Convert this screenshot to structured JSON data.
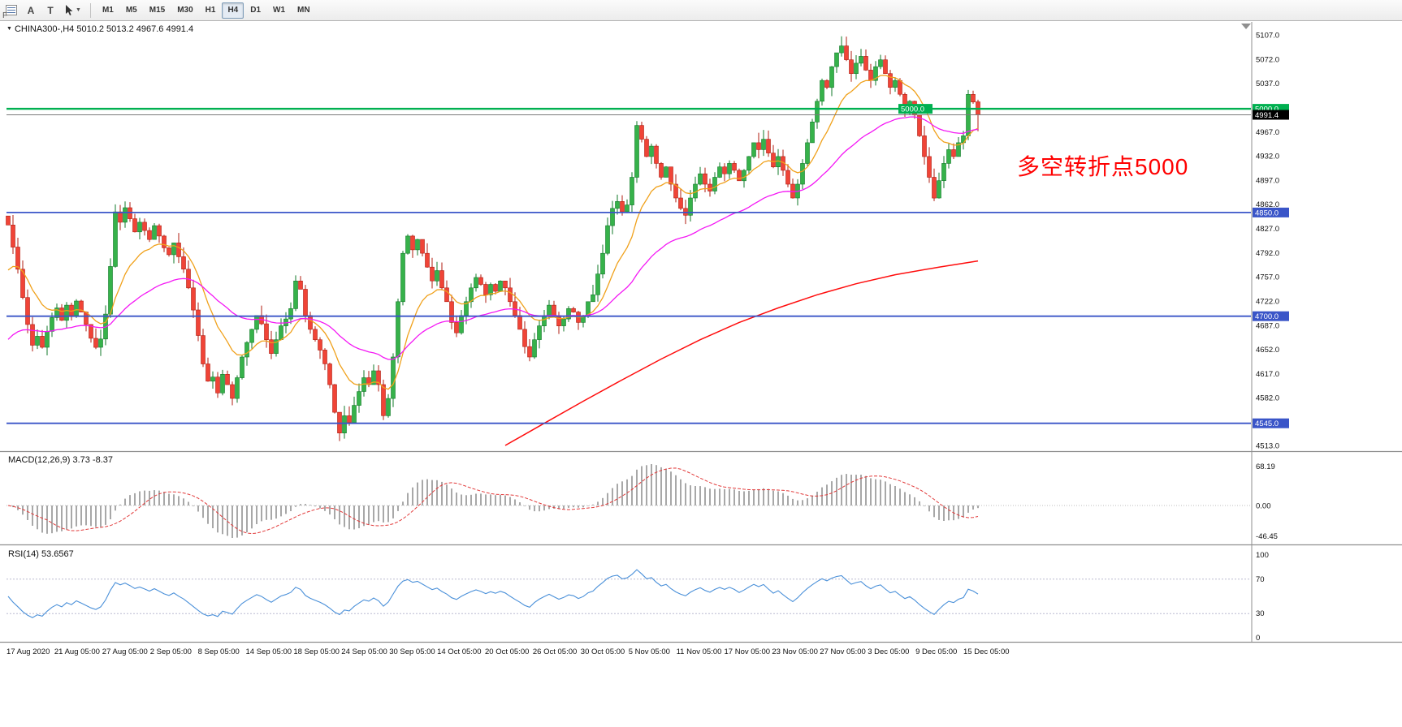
{
  "toolbar": {
    "edge_label": "F",
    "tools": [
      {
        "name": "chart-list-icon"
      },
      {
        "name": "text-label-tool",
        "glyph": "A"
      },
      {
        "name": "text-box-tool",
        "glyph": "T"
      },
      {
        "name": "cursor-tool",
        "caret": "▼"
      }
    ],
    "timeframes": [
      "M1",
      "M5",
      "M15",
      "M30",
      "H1",
      "H4",
      "D1",
      "W1",
      "MN"
    ],
    "active_timeframe": "H4"
  },
  "symbol_bar": {
    "caret": "▼",
    "label": "CHINA300-,H4 5010.2 5013.2 4967.6 4991.4"
  },
  "annotation": {
    "text": "多空转折点5000",
    "color": "#ff0000"
  },
  "price_axis": {
    "ticks": [
      5107.0,
      5072.0,
      5037.0,
      4967.0,
      4932.0,
      4897.0,
      4862.0,
      4827.0,
      4792.0,
      4757.0,
      4722.0,
      4687.0,
      4652.0,
      4617.0,
      4582.0,
      4513.0
    ]
  },
  "hlines": [
    {
      "price": 4850.0,
      "label": "4850.0"
    },
    {
      "price": 4700.0,
      "label": "4700.0"
    },
    {
      "price": 4545.0,
      "label": "4545.0"
    }
  ],
  "hline_color": "#3a55c8",
  "green_line": {
    "price": 5000.0,
    "label": "5000.0",
    "color": "#00b050"
  },
  "current_price": {
    "price": 4991.4,
    "label": "4991.4"
  },
  "indicators": {
    "macd": {
      "label": "MACD(12,26,9) 3.73 -8.37",
      "fast": 12,
      "slow": 26,
      "signal": 9,
      "axis_top": "68.19",
      "axis_zero": "0.00",
      "axis_bottom": "-46.45"
    },
    "rsi": {
      "label": "RSI(14) 53.6567",
      "period": 14,
      "axis": [
        "100",
        "70",
        "30",
        "0"
      ],
      "levels": [
        70,
        30
      ]
    }
  },
  "time_axis": [
    "17 Aug 2020",
    "21 Aug 05:00",
    "27 Aug 05:00",
    "2 Sep 05:00",
    "8 Sep 05:00",
    "14 Sep 05:00",
    "18 Sep 05:00",
    "24 Sep 05:00",
    "30 Sep 05:00",
    "14 Oct 05:00",
    "20 Oct 05:00",
    "26 Oct 05:00",
    "30 Oct 05:00",
    "5 Nov 05:00",
    "11 Nov 05:00",
    "17 Nov 05:00",
    "23 Nov 05:00",
    "27 Nov 05:00",
    "3 Dec 05:00",
    "9 Dec 05:00",
    "15 Dec 05:00"
  ],
  "chart_data": {
    "type": "candlestick",
    "symbol": "CHINA300-",
    "timeframe": "H4",
    "current_bar": {
      "open": 5010.2,
      "high": 5013.2,
      "low": 4967.6,
      "close": 4991.4
    },
    "price_range": {
      "top": 5107.0,
      "bottom": 4513.0
    },
    "first_open": 4845,
    "closes": [
      4832,
      4800,
      4768,
      4727,
      4688,
      4658,
      4671,
      4655,
      4678,
      4698,
      4712,
      4694,
      4716,
      4701,
      4722,
      4706,
      4688,
      4668,
      4655,
      4667,
      4703,
      4772,
      4851,
      4836,
      4857,
      4841,
      4822,
      4836,
      4824,
      4811,
      4831,
      4816,
      4799,
      4789,
      4806,
      4786,
      4768,
      4741,
      4709,
      4672,
      4631,
      4606,
      4612,
      4589,
      4616,
      4601,
      4581,
      4611,
      4641,
      4662,
      4681,
      4701,
      4689,
      4666,
      4646,
      4666,
      4686,
      4696,
      4711,
      4751,
      4739,
      4701,
      4681,
      4666,
      4651,
      4631,
      4601,
      4561,
      4531,
      4556,
      4546,
      4571,
      4591,
      4611,
      4601,
      4621,
      4601,
      4556,
      4581,
      4641,
      4721,
      4791,
      4816,
      4796,
      4811,
      4791,
      4771,
      4751,
      4766,
      4741,
      4721,
      4691,
      4676,
      4701,
      4721,
      4741,
      4756,
      4746,
      4731,
      4746,
      4736,
      4751,
      4741,
      4721,
      4701,
      4681,
      4656,
      4641,
      4666,
      4686,
      4701,
      4716,
      4701,
      4686,
      4696,
      4711,
      4706,
      4691,
      4701,
      4721,
      4731,
      4761,
      4791,
      4831,
      4856,
      4866,
      4851,
      4861,
      4901,
      4976,
      4956,
      4931,
      4946,
      4921,
      4901,
      4916,
      4891,
      4871,
      4856,
      4846,
      4871,
      4891,
      4906,
      4891,
      4881,
      4901,
      4916,
      4906,
      4921,
      4911,
      4896,
      4911,
      4931,
      4951,
      4941,
      4956,
      4936,
      4916,
      4931,
      4911,
      4891,
      4871,
      4891,
      4921,
      4951,
      4981,
      5011,
      5041,
      5031,
      5061,
      5081,
      5091,
      5071,
      5051,
      5066,
      5076,
      5056,
      5041,
      5061,
      5071,
      5051,
      5031,
      5041,
      5021,
      5001,
      5011,
      4991,
      4961,
      4931,
      4901,
      4871,
      4896,
      4921,
      4941,
      4931,
      4951,
      4961,
      5021,
      5010,
      4991
    ],
    "moving_averages": {
      "fast": {
        "type": "EMA",
        "period": 12,
        "color": "#f0a11b",
        "seed": 4755
      },
      "mid": {
        "type": "EMA",
        "period": 40,
        "color": "#f418f4",
        "seed": 4658
      },
      "slow": {
        "color": "#ff0c0c",
        "waypoints": [
          [
            102,
            4513
          ],
          [
            110,
            4545
          ],
          [
            118,
            4577
          ],
          [
            126,
            4608
          ],
          [
            134,
            4638
          ],
          [
            142,
            4666
          ],
          [
            150,
            4691
          ],
          [
            158,
            4712
          ],
          [
            166,
            4731
          ],
          [
            174,
            4747
          ],
          [
            182,
            4760
          ],
          [
            191,
            4771
          ],
          [
            199,
            4780
          ]
        ]
      }
    },
    "colors": {
      "up_fill": "#36b24a",
      "up_stroke": "#127a28",
      "down_fill": "#f04437",
      "down_stroke": "#b01d12"
    }
  }
}
